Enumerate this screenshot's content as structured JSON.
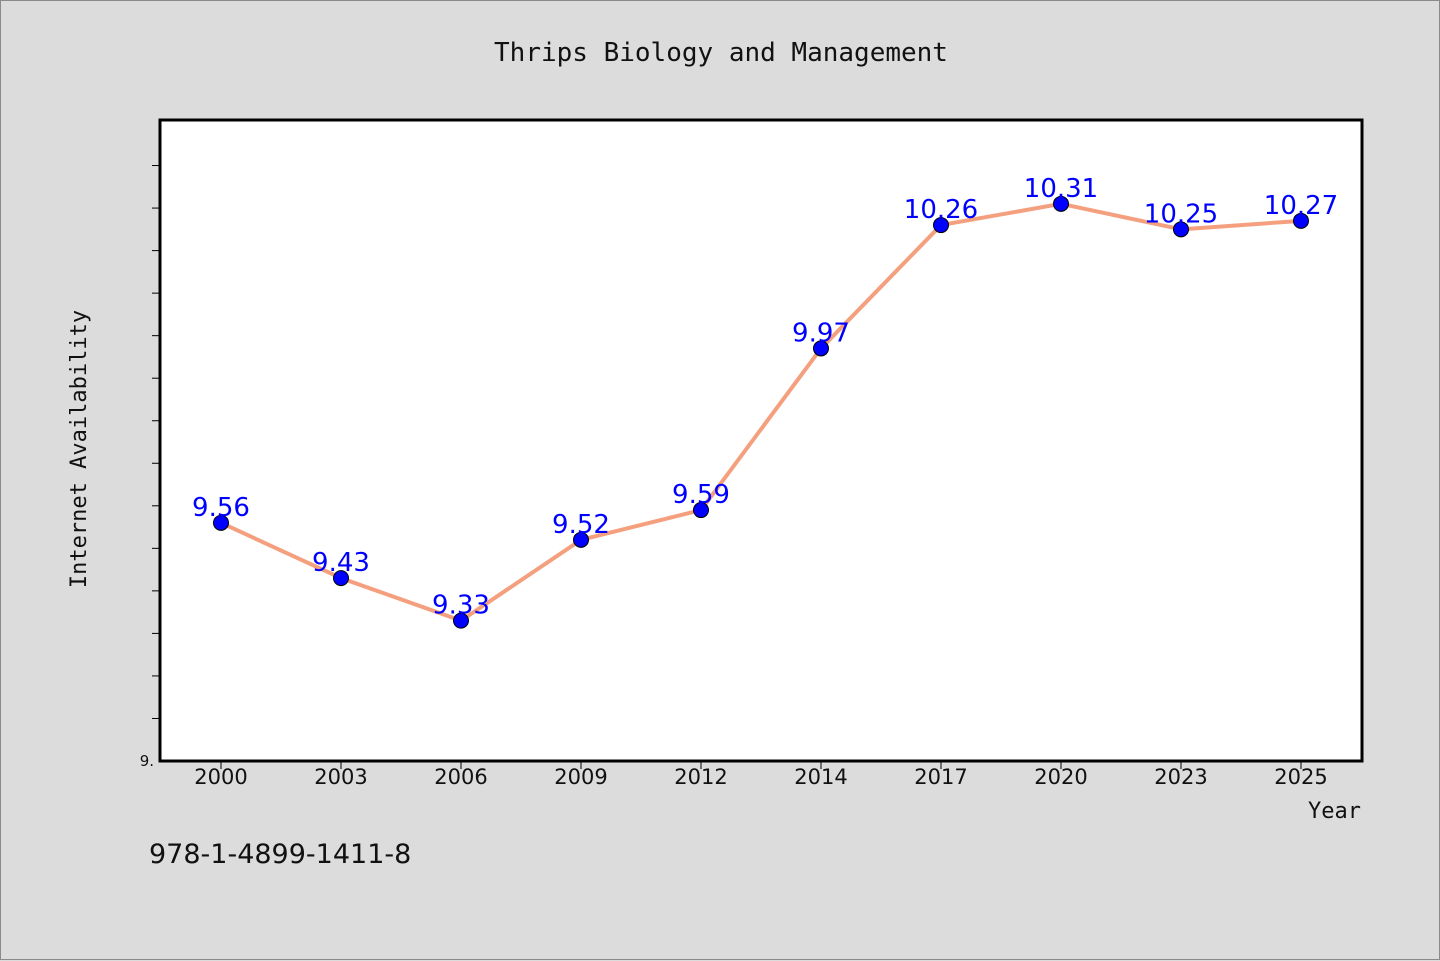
{
  "chart_data": {
    "type": "line",
    "title": "Thrips Biology and Management",
    "xlabel": "Year",
    "ylabel": "Internet Availability",
    "categories": [
      "2000",
      "2003",
      "2006",
      "2009",
      "2012",
      "2014",
      "2017",
      "2020",
      "2023",
      "2025"
    ],
    "series": [
      {
        "values": [
          9.56,
          9.43,
          9.33,
          9.52,
          9.59,
          9.97,
          10.26,
          10.31,
          10.25,
          10.27
        ],
        "line_color": "#f4a07e",
        "marker_color": "#0000ff"
      }
    ],
    "ylim": [
      9.0,
      10.5
    ],
    "ytick_labels": [
      {
        "value": 9.0,
        "text": "9."
      }
    ],
    "yticks_minor": [
      9.1,
      9.2,
      9.3,
      9.4,
      9.5,
      9.6,
      9.7,
      9.8,
      9.9,
      10.0,
      10.1,
      10.2,
      10.3,
      10.4
    ],
    "data_labels": [
      "9.56",
      "9.43",
      "9.33",
      "9.52",
      "9.59",
      "9.97",
      "10.26",
      "10.31",
      "10.25",
      "10.27"
    ],
    "grid": false,
    "legend": "none"
  },
  "footer_text": "978-1-4899-1411-8",
  "colors": {
    "background": "#dcdcdc",
    "plot_background": "#ffffff",
    "line": "#f4a07e",
    "marker": "#0000ff",
    "label": "#0000ff"
  }
}
